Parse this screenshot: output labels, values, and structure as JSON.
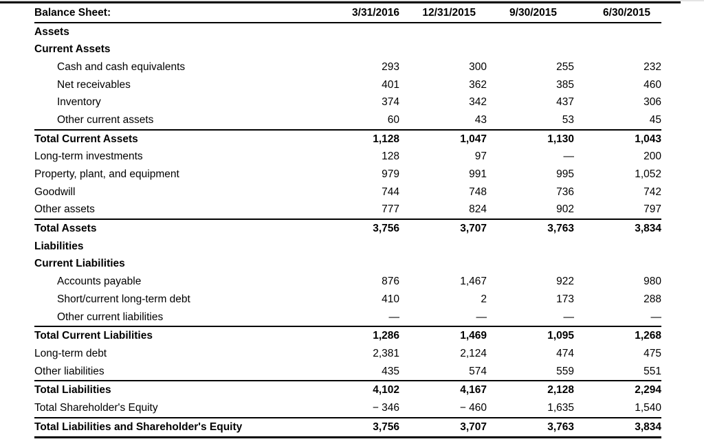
{
  "page": {
    "background": "#ffffff",
    "text_color": "#000000",
    "rule_color": "#000000",
    "top_edge_color": "#e4e4e4"
  },
  "table": {
    "title": "Balance Sheet:",
    "columns": [
      "3/31/2016",
      "12/31/2015",
      "9/30/2015",
      "6/30/2015"
    ],
    "missing_value_symbol": "—",
    "rows": [
      {
        "label": "Assets",
        "type": "section",
        "indent": false,
        "rule_above": false,
        "values": [
          "",
          "",
          "",
          ""
        ]
      },
      {
        "label": "Current Assets",
        "type": "section",
        "indent": false,
        "rule_above": false,
        "values": [
          "",
          "",
          "",
          ""
        ]
      },
      {
        "label": "Cash and cash equivalents",
        "type": "item",
        "indent": true,
        "rule_above": false,
        "values": [
          "293",
          "300",
          "255",
          "232"
        ]
      },
      {
        "label": "Net receivables",
        "type": "item",
        "indent": true,
        "rule_above": false,
        "values": [
          "401",
          "362",
          "385",
          "460"
        ]
      },
      {
        "label": "Inventory",
        "type": "item",
        "indent": true,
        "rule_above": false,
        "values": [
          "374",
          "342",
          "437",
          "306"
        ]
      },
      {
        "label": "Other current assets",
        "type": "item",
        "indent": true,
        "rule_above": false,
        "values": [
          "60",
          "43",
          "53",
          "45"
        ]
      },
      {
        "label": "Total Current Assets",
        "type": "total",
        "indent": false,
        "rule_above": true,
        "values": [
          "1,128",
          "1,047",
          "1,130",
          "1,043"
        ]
      },
      {
        "label": "Long-term investments",
        "type": "item",
        "indent": false,
        "rule_above": false,
        "values": [
          "128",
          "97",
          "—",
          "200"
        ]
      },
      {
        "label": "Property, plant, and equipment",
        "type": "item",
        "indent": false,
        "rule_above": false,
        "values": [
          "979",
          "991",
          "995",
          "1,052"
        ]
      },
      {
        "label": "Goodwill",
        "type": "item",
        "indent": false,
        "rule_above": false,
        "values": [
          "744",
          "748",
          "736",
          "742"
        ]
      },
      {
        "label": "Other assets",
        "type": "item",
        "indent": false,
        "rule_above": false,
        "values": [
          "777",
          "824",
          "902",
          "797"
        ]
      },
      {
        "label": "Total Assets",
        "type": "total",
        "indent": false,
        "rule_above": true,
        "values": [
          "3,756",
          "3,707",
          "3,763",
          "3,834"
        ]
      },
      {
        "label": "Liabilities",
        "type": "section",
        "indent": false,
        "rule_above": false,
        "values": [
          "",
          "",
          "",
          ""
        ]
      },
      {
        "label": "Current Liabilities",
        "type": "section",
        "indent": false,
        "rule_above": false,
        "values": [
          "",
          "",
          "",
          ""
        ]
      },
      {
        "label": "Accounts payable",
        "type": "item",
        "indent": true,
        "rule_above": false,
        "values": [
          "876",
          "1,467",
          "922",
          "980"
        ]
      },
      {
        "label": "Short/current long-term debt",
        "type": "item",
        "indent": true,
        "rule_above": false,
        "values": [
          "410",
          "2",
          "173",
          "288"
        ]
      },
      {
        "label": "Other current liabilities",
        "type": "item",
        "indent": true,
        "rule_above": false,
        "values": [
          "—",
          "—",
          "—",
          "—"
        ]
      },
      {
        "label": "Total Current Liabilities",
        "type": "total",
        "indent": false,
        "rule_above": true,
        "values": [
          "1,286",
          "1,469",
          "1,095",
          "1,268"
        ]
      },
      {
        "label": "Long-term debt",
        "type": "item",
        "indent": false,
        "rule_above": false,
        "values": [
          "2,381",
          "2,124",
          "474",
          "475"
        ]
      },
      {
        "label": "Other liabilities",
        "type": "item",
        "indent": false,
        "rule_above": false,
        "values": [
          "435",
          "574",
          "559",
          "551"
        ]
      },
      {
        "label": "Total Liabilities",
        "type": "total",
        "indent": false,
        "rule_above": true,
        "values": [
          "4,102",
          "4,167",
          "2,128",
          "2,294"
        ]
      },
      {
        "label": "Total Shareholder's Equity",
        "type": "item",
        "indent": false,
        "rule_above": false,
        "values": [
          "− 346",
          "− 460",
          "1,635",
          "1,540"
        ]
      },
      {
        "label": "Total Liabilities and Shareholder's Equity",
        "type": "grand",
        "indent": false,
        "rule_above": true,
        "values": [
          "3,756",
          "3,707",
          "3,763",
          "3,834"
        ]
      }
    ]
  }
}
